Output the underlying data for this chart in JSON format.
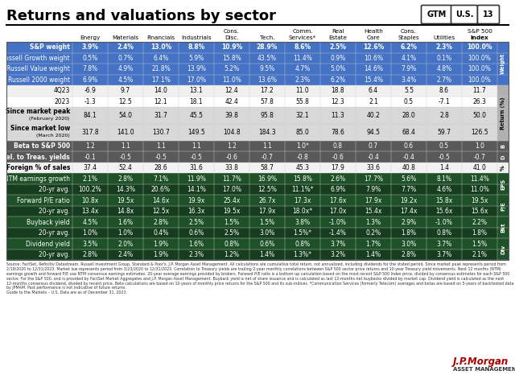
{
  "title": "Returns and valuations by sector",
  "col_headers_line1": [
    "",
    "",
    "",
    "",
    "Cons.",
    "",
    "Comm.",
    "Real",
    "Health",
    "Cons.",
    "",
    "S&P 500"
  ],
  "col_headers_line2": [
    "Energy",
    "Materials",
    "Financials",
    "Industrials",
    "Disc.",
    "Tech.",
    "Services*",
    "Estate",
    "Care",
    "Staples",
    "Utilities",
    "Index"
  ],
  "row_groups": [
    {
      "label": "Weight",
      "rows": [
        {
          "label": "S&P weight",
          "values": [
            "3.9%",
            "2.4%",
            "13.0%",
            "8.8%",
            "10.9%",
            "28.9%",
            "8.6%",
            "2.5%",
            "12.6%",
            "6.2%",
            "2.3%",
            "100.0%"
          ],
          "style": "weight_header"
        },
        {
          "label": "Russell Growth weight",
          "values": [
            "0.5%",
            "0.7%",
            "6.4%",
            "5.9%",
            "15.8%",
            "43.5%",
            "11.4%",
            "0.9%",
            "10.6%",
            "4.1%",
            "0.1%",
            "100.0%"
          ],
          "style": "weight"
        },
        {
          "label": "Russell Value weight",
          "values": [
            "7.8%",
            "4.9%",
            "21.8%",
            "13.9%",
            "5.2%",
            "9.5%",
            "4.7%",
            "5.0%",
            "14.6%",
            "7.9%",
            "4.8%",
            "100.0%"
          ],
          "style": "weight"
        },
        {
          "label": "Russell 2000 weight",
          "values": [
            "6.9%",
            "4.5%",
            "17.1%",
            "17.0%",
            "11.0%",
            "13.6%",
            "2.3%",
            "6.2%",
            "15.4%",
            "3.4%",
            "2.7%",
            "100.0%"
          ],
          "style": "weight"
        }
      ],
      "side_label": "Weight"
    },
    {
      "label": "Return",
      "rows": [
        {
          "label": "4Q23",
          "values": [
            "-6.9",
            "9.7",
            "14.0",
            "13.1",
            "12.4",
            "17.2",
            "11.0",
            "18.8",
            "6.4",
            "5.5",
            "8.6",
            "11.7"
          ],
          "style": "return"
        },
        {
          "label": "2023",
          "values": [
            "-1.3",
            "12.5",
            "12.1",
            "18.1",
            "42.4",
            "57.8",
            "55.8",
            "12.3",
            "2.1",
            "0.5",
            "-7.1",
            "26.3"
          ],
          "style": "return"
        },
        {
          "label": "Since market peak\n(February 2020)",
          "values": [
            "84.1",
            "54.0",
            "31.7",
            "45.5",
            "39.8",
            "95.8",
            "32.1",
            "11.3",
            "40.2",
            "28.0",
            "2.8",
            "50.0"
          ],
          "style": "return_highlight"
        },
        {
          "label": "Since market low\n(March 2020)",
          "values": [
            "317.8",
            "141.0",
            "130.7",
            "149.5",
            "104.8",
            "184.3",
            "85.0",
            "78.6",
            "94.5",
            "68.4",
            "59.7",
            "126.5"
          ],
          "style": "return_highlight"
        }
      ],
      "side_label": "Return (%)"
    },
    {
      "label": "Beta",
      "rows": [
        {
          "label": "Beta to S&P 500",
          "values": [
            "1.2",
            "1.1",
            "1.1",
            "1.1",
            "1.2",
            "1.1",
            "1.0*",
            "0.8",
            "0.7",
            "0.6",
            "0.5",
            "1.0"
          ],
          "style": "beta"
        }
      ],
      "side_label": "B"
    },
    {
      "label": "Correl",
      "rows": [
        {
          "label": "Correl. to Treas. yields",
          "values": [
            "-0.1",
            "-0.5",
            "-0.5",
            "-0.5",
            "-0.6",
            "-0.7",
            "-0.8",
            "-0.6",
            "-0.4",
            "-0.4",
            "-0.5",
            "-0.7"
          ],
          "style": "correl"
        }
      ],
      "side_label": "D"
    },
    {
      "label": "Foreign",
      "rows": [
        {
          "label": "Foreign % of sales",
          "values": [
            "37.4",
            "52.4",
            "28.6",
            "31.6",
            "33.8",
            "58.7",
            "45.3",
            "17.9",
            "33.6",
            "40.8",
            "1.4",
            "41.0"
          ],
          "style": "foreign"
        }
      ],
      "side_label": "%"
    },
    {
      "label": "EPS",
      "rows": [
        {
          "label": "NTM earnings growth",
          "values": [
            "2.1%",
            "2.8%",
            "7.1%",
            "11.9%",
            "11.7%",
            "16.9%",
            "15.8%",
            "2.6%",
            "17.7%",
            "5.6%",
            "8.1%",
            "11.4%"
          ],
          "style": "eps_header"
        },
        {
          "label": "20-yr avg.",
          "values": [
            "100.2%",
            "14.3%",
            "20.6%",
            "14.1%",
            "17.0%",
            "12.5%",
            "11.1%*",
            "6.9%",
            "7.9%",
            "7.7%",
            "4.6%",
            "11.0%"
          ],
          "style": "eps_dark"
        }
      ],
      "side_label": "EPS"
    },
    {
      "label": "PE",
      "rows": [
        {
          "label": "Forward P/E ratio",
          "values": [
            "10.8x",
            "19.5x",
            "14.6x",
            "19.9x",
            "25.4x",
            "26.7x",
            "17.3x",
            "17.6x",
            "17.9x",
            "19.2x",
            "15.8x",
            "19.5x"
          ],
          "style": "pe_header"
        },
        {
          "label": "20-yr avg.",
          "values": [
            "13.4x",
            "14.8x",
            "12.5x",
            "16.3x",
            "19.5x",
            "17.9x",
            "18.0x*",
            "17.0x",
            "15.4x",
            "17.4x",
            "15.6x",
            "15.6x"
          ],
          "style": "pe_dark"
        }
      ],
      "side_label": "P/E"
    },
    {
      "label": "Buyback",
      "rows": [
        {
          "label": "Buyback yield",
          "values": [
            "4.5%",
            "1.6%",
            "2.8%",
            "2.5%",
            "1.5%",
            "1.5%",
            "3.8%",
            "-1.0%",
            "1.3%",
            "2.9%",
            "-1.0%",
            "2.2%"
          ],
          "style": "bkt_header"
        },
        {
          "label": "20-yr avg.",
          "values": [
            "1.0%",
            "1.0%",
            "0.4%",
            "0.6%",
            "2.5%",
            "3.0%",
            "1.5%*",
            "-1.4%",
            "0.2%",
            "1.8%",
            "0.8%",
            "1.8%"
          ],
          "style": "bkt_dark"
        }
      ],
      "side_label": "Bkt"
    },
    {
      "label": "Div",
      "rows": [
        {
          "label": "Dividend yield",
          "values": [
            "3.5%",
            "2.0%",
            "1.9%",
            "1.6%",
            "0.8%",
            "0.6%",
            "0.8%",
            "3.7%",
            "1.7%",
            "3.0%",
            "3.7%",
            "1.5%"
          ],
          "style": "div_header"
        },
        {
          "label": "20-yr avg.",
          "values": [
            "2.8%",
            "2.4%",
            "1.9%",
            "2.3%",
            "1.2%",
            "1.4%",
            "1.3%*",
            "3.2%",
            "1.4%",
            "2.8%",
            "3.7%",
            "2.1%"
          ],
          "style": "div_dark"
        }
      ],
      "side_label": "Div"
    }
  ],
  "style_colors": {
    "weight_header": [
      "#4472c4",
      "#ffffff"
    ],
    "weight": [
      "#4472c4",
      "#ffffff"
    ],
    "return_even": [
      "#f0f0f0",
      "#000000"
    ],
    "return_odd": [
      "#ffffff",
      "#000000"
    ],
    "return_highlight": [
      "#d8d8d8",
      "#000000"
    ],
    "beta": [
      "#595959",
      "#ffffff"
    ],
    "correl": [
      "#595959",
      "#ffffff"
    ],
    "foreign": [
      "#f2f2f2",
      "#000000"
    ],
    "eps_header": [
      "#1e5128",
      "#ffffff"
    ],
    "eps_dark": [
      "#163d1e",
      "#ffffff"
    ],
    "pe_header": [
      "#1e5128",
      "#ffffff"
    ],
    "pe_dark": [
      "#163d1e",
      "#ffffff"
    ],
    "bkt_header": [
      "#1e5128",
      "#ffffff"
    ],
    "bkt_dark": [
      "#163d1e",
      "#ffffff"
    ],
    "div_header": [
      "#1e5128",
      "#ffffff"
    ],
    "div_dark": [
      "#163d1e",
      "#ffffff"
    ]
  },
  "side_label_styles": {
    "Weight": [
      "#4472c4",
      "white"
    ],
    "Return (%)": [
      "#b0b0b0",
      "black"
    ],
    "B": [
      "#595959",
      "white"
    ],
    "D": [
      "#595959",
      "white"
    ],
    "%": [
      "#f2f2f2",
      "black"
    ],
    "EPS": [
      "#1e5128",
      "white"
    ],
    "P/E": [
      "#1e5128",
      "white"
    ],
    "Bkt": [
      "#1e5128",
      "white"
    ],
    "Div": [
      "#1e5128",
      "white"
    ]
  },
  "footer": "Source: FactSet, Refinitiv Datastream, Russell Investment Group, Standard & Poor's, J.P. Morgan Asset Management. All calculations are cumulative total return, not annualized, including dividends for the stated period. Since market peak represents period from 2/19/2020 to 12/31/2023. Market low represents period from 3/23/2020 to 12/31/2023. Correlation to Treasury yields are trailing 2-year monthly correlations between S&P 500 sector price returns and 10-year Treasury yield movements. Next 12 months (NTM) earnings growth and forward P/E use NTM consensus earnings estimates. 20-year average earnings provided by brokers. Forward P/E ratio is a bottom-up calculation based on the most recent S&P 500 Index price, divided by consensus estimates for each S&P 500 sector. For the S&P 500, and is provided by FactSet Market Aggregates and J.P. Morgan Asset Management. Buyback yield is net of share issuance and is calculated as last 12-months net buybacks divided by market cap. Dividend yield is calculated as the next 12-months consensus dividend, divided by recent price. Beta calculations are based on 10-years of monthly price returns for the S&P 500 and its sub-indices. *Communication Services (formerly Telecom) averages and betas are based on 5-years of backtested data by JPMAM. Past performance is not indicative of future returns.\nGuide to the Markets – U.S. Data are as of December 31, 2023."
}
